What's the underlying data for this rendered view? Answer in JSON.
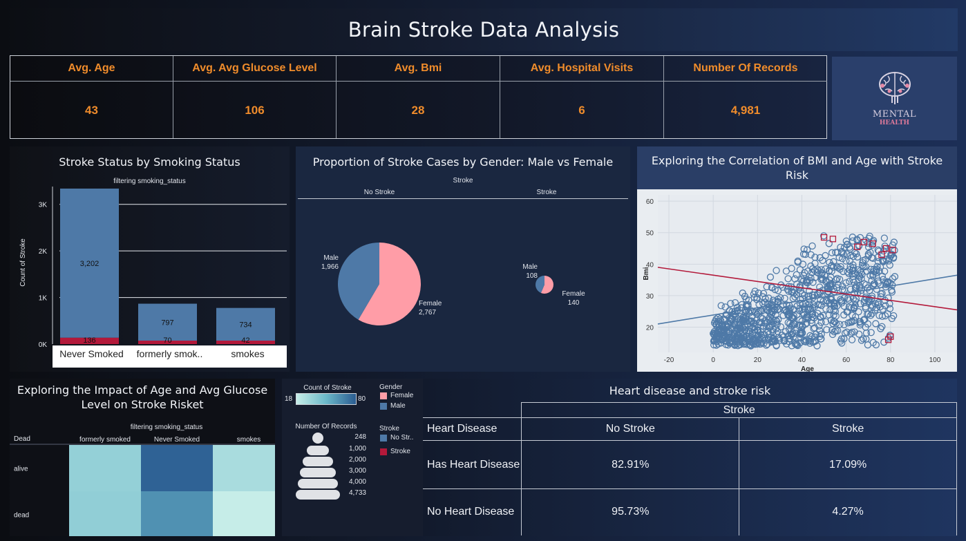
{
  "title": "Brain Stroke Data Analysis",
  "kpis": {
    "headers": [
      "Avg. Age",
      "Avg. Avg Glucose Level",
      "Avg. Bmi",
      "Avg. Hospital Visits",
      "Number Of Records"
    ],
    "values": [
      "43",
      "106",
      "28",
      "6",
      "4,981"
    ],
    "color": "#f08c2b"
  },
  "logo": {
    "line1": "MENTAL",
    "line2": "HEALTH"
  },
  "smoking_chart": {
    "title": "Stroke Status by Smoking Status",
    "subtitle": "filtering smoking_status",
    "ylabel": "Count of Stroke",
    "yticks": [
      "0K",
      "1K",
      "2K",
      "3K"
    ],
    "bar_labels_no_stroke": [
      "3,202",
      "797",
      "734"
    ],
    "bar_labels_stroke": [
      "136",
      "70",
      "42"
    ],
    "categories_display": [
      "Never Smoked",
      "formerly smok..",
      "smokes"
    ]
  },
  "gender_chart": {
    "title": "Proportion of Stroke Cases by Gender: Male vs Female",
    "header": "Stroke",
    "columns": [
      "No Stroke",
      "Stroke"
    ],
    "pie1": {
      "male_label": "Male",
      "male_value": "1,966",
      "female_label": "Female",
      "female_value": "2,767"
    },
    "pie2": {
      "male_label": "Male",
      "male_value": "108",
      "female_label": "Female",
      "female_value": "140"
    }
  },
  "scatter_chart": {
    "title": "Exploring the Correlation of BMI and Age with Stroke Risk",
    "xlabel": "Age",
    "ylabel": "Bmi",
    "xticks": [
      "-20",
      "0",
      "20",
      "40",
      "60",
      "80",
      "100"
    ],
    "yticks": [
      "20",
      "30",
      "40",
      "50",
      "60"
    ]
  },
  "heatmap_chart": {
    "title": "Exploring the Impact of Age and Avg Glucose Level on Stroke Risket",
    "subtitle": "filtering smoking_status",
    "row_header": "Dead",
    "columns": [
      "formerly smoked",
      "Never Smoked",
      "smokes"
    ],
    "rows": [
      "alive",
      "dead"
    ]
  },
  "legend": {
    "count_title": "Count of Stroke",
    "count_min": "18",
    "count_max": "80",
    "gender_title": "Gender",
    "gender_items": [
      "Female",
      "Male"
    ],
    "records_title": "Number Of Records",
    "records_values": [
      "248",
      "1,000",
      "2,000",
      "3,000",
      "4,000",
      "4,733"
    ],
    "stroke_title": "Stroke",
    "stroke_items": [
      "No Str..",
      "Stroke"
    ]
  },
  "heart_table": {
    "title": "Heart disease and stroke risk",
    "group_header": "Stroke",
    "row_header": "Heart Disease",
    "columns": [
      "No Stroke",
      "Stroke"
    ],
    "rows": [
      {
        "label": "Has Heart Disease",
        "no_stroke": "82.91%",
        "stroke": "17.09%"
      },
      {
        "label": "No Heart Disease",
        "no_stroke": "95.73%",
        "stroke": "4.27%"
      }
    ]
  },
  "colors": {
    "male": "#4e79a7",
    "female": "#ff9da7",
    "no_stroke": "#4e79a7",
    "stroke": "#b3193a",
    "heat_low": "#b9e3df",
    "heat_high": "#2b5c91"
  },
  "chart_data": [
    {
      "type": "bar",
      "stacked": true,
      "categories": [
        "Never Smoked",
        "formerly smoked",
        "smokes"
      ],
      "series": [
        {
          "name": "No Stroke",
          "values": [
            3202,
            797,
            734
          ]
        },
        {
          "name": "Stroke",
          "values": [
            136,
            70,
            42
          ]
        }
      ],
      "ylim": [
        0,
        3500
      ],
      "grid": true
    },
    {
      "type": "pie",
      "panels": [
        "No Stroke",
        "Stroke"
      ],
      "series": [
        {
          "name": "No Stroke",
          "labels": [
            "Male",
            "Female"
          ],
          "values": [
            1966,
            2767
          ]
        },
        {
          "name": "Stroke",
          "labels": [
            "Male",
            "Female"
          ],
          "values": [
            108,
            140
          ]
        }
      ]
    },
    {
      "type": "scatter",
      "xlim": [
        -25,
        110
      ],
      "ylim": [
        12,
        62
      ],
      "trend_lines": [
        {
          "name": "No Stroke",
          "points": [
            [
              -25,
              21
            ],
            [
              110,
              36.5
            ]
          ]
        },
        {
          "name": "Stroke",
          "points": [
            [
              -25,
              39
            ],
            [
              110,
              25.5
            ]
          ]
        }
      ],
      "grid": true
    },
    {
      "type": "heatmap",
      "columns": [
        "formerly smoked",
        "Never Smoked",
        "smokes"
      ],
      "rows": [
        "alive",
        "dead"
      ],
      "values": [
        [
          35,
          78,
          28
        ],
        [
          36,
          62,
          18
        ]
      ],
      "color_range": [
        18,
        80
      ]
    },
    {
      "type": "table",
      "columns": [
        "Heart Disease",
        "No Stroke",
        "Stroke"
      ],
      "rows": [
        [
          "Has Heart Disease",
          "82.91%",
          "17.09%"
        ],
        [
          "No Heart Disease",
          "95.73%",
          "4.27%"
        ]
      ]
    }
  ]
}
